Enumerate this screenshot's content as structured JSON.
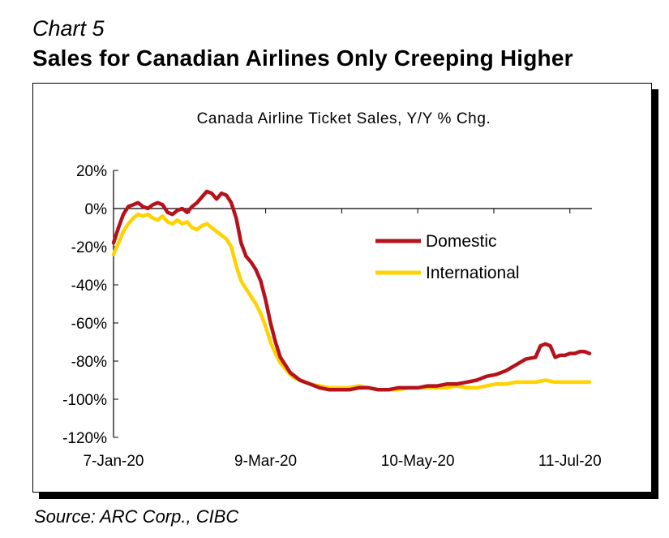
{
  "header": {
    "chart_label": "Chart 5",
    "title": "Sales for Canadian Airlines Only Creeping Higher"
  },
  "footer": {
    "source": "Source: ARC Corp., CIBC"
  },
  "colors": {
    "domestic": "#b5121b",
    "international": "#ffd200"
  },
  "chart_data": {
    "type": "line",
    "title": "Canada Airline Ticket Sales, Y/Y % Chg.",
    "xlabel": "",
    "ylabel": "",
    "ylim": [
      -120,
      20
    ],
    "yticks": [
      20,
      0,
      -20,
      -40,
      -60,
      -80,
      -100,
      -120
    ],
    "ytick_labels": [
      "20%",
      "0%",
      "-20%",
      "-40%",
      "-60%",
      "-80%",
      "-100%",
      "-120%"
    ],
    "x_range_days": [
      0,
      195
    ],
    "xticks": [
      {
        "label": "7-Jan-20",
        "day": 0
      },
      {
        "label": "9-Mar-20",
        "day": 62
      },
      {
        "label": "10-May-20",
        "day": 124
      },
      {
        "label": "11-Jul-20",
        "day": 186
      }
    ],
    "grid": false,
    "legend": "center-right",
    "series": [
      {
        "name": "Domestic",
        "color": "#b5121b",
        "x": [
          0,
          2,
          4,
          6,
          8,
          10,
          12,
          14,
          16,
          18,
          20,
          22,
          24,
          26,
          28,
          30,
          32,
          34,
          36,
          38,
          40,
          42,
          44,
          46,
          48,
          50,
          52,
          54,
          56,
          58,
          60,
          62,
          64,
          66,
          68,
          70,
          72,
          74,
          76,
          78,
          80,
          84,
          88,
          92,
          96,
          100,
          104,
          108,
          112,
          116,
          120,
          124,
          128,
          132,
          136,
          140,
          144,
          148,
          152,
          156,
          160,
          164,
          168,
          172,
          174,
          176,
          178,
          180,
          182,
          184,
          186,
          188,
          190,
          192,
          194
        ],
        "y": [
          -18,
          -10,
          -3,
          1,
          2,
          3,
          1,
          0,
          2,
          3,
          2,
          -2,
          -3,
          -1,
          0,
          -2,
          1,
          3,
          6,
          9,
          8,
          5,
          8,
          7,
          3,
          -5,
          -18,
          -25,
          -28,
          -32,
          -38,
          -48,
          -60,
          -70,
          -78,
          -82,
          -86,
          -88,
          -90,
          -91,
          -92,
          -94,
          -95,
          -95,
          -95,
          -94,
          -94,
          -95,
          -95,
          -94,
          -94,
          -94,
          -93,
          -93,
          -92,
          -92,
          -91,
          -90,
          -88,
          -87,
          -85,
          -82,
          -79,
          -78,
          -72,
          -71,
          -72,
          -78,
          -77,
          -77,
          -76,
          -76,
          -75,
          -75,
          -76
        ]
      },
      {
        "name": "International",
        "color": "#ffd200",
        "x": [
          0,
          2,
          4,
          6,
          8,
          10,
          12,
          14,
          16,
          18,
          20,
          22,
          24,
          26,
          28,
          30,
          32,
          34,
          36,
          38,
          40,
          42,
          44,
          46,
          48,
          50,
          52,
          54,
          56,
          58,
          60,
          62,
          64,
          66,
          68,
          70,
          72,
          74,
          76,
          78,
          80,
          84,
          88,
          92,
          96,
          100,
          104,
          108,
          112,
          116,
          120,
          124,
          128,
          132,
          136,
          140,
          144,
          148,
          152,
          156,
          160,
          164,
          168,
          172,
          176,
          180,
          184,
          188,
          192,
          194
        ],
        "y": [
          -24,
          -18,
          -12,
          -8,
          -5,
          -3,
          -4,
          -3,
          -5,
          -6,
          -4,
          -7,
          -8,
          -6,
          -8,
          -7,
          -10,
          -11,
          -9,
          -8,
          -10,
          -12,
          -14,
          -16,
          -20,
          -30,
          -38,
          -42,
          -46,
          -50,
          -55,
          -62,
          -70,
          -76,
          -81,
          -84,
          -87,
          -89,
          -90,
          -91,
          -92,
          -93,
          -94,
          -94,
          -94,
          -93,
          -94,
          -95,
          -95,
          -95,
          -94,
          -94,
          -94,
          -94,
          -94,
          -93,
          -94,
          -94,
          -93,
          -92,
          -92,
          -91,
          -91,
          -91,
          -90,
          -91,
          -91,
          -91,
          -91,
          -91
        ]
      }
    ]
  }
}
